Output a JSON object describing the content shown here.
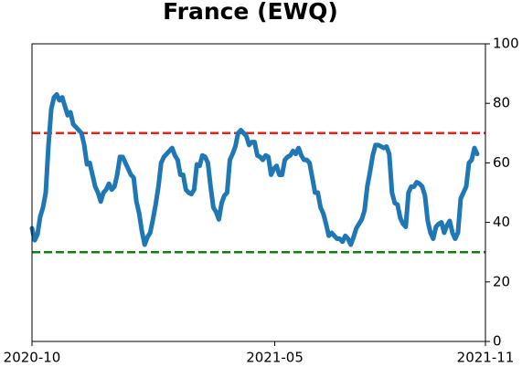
{
  "chart_data": {
    "type": "line",
    "title": "France (EWQ)",
    "x": [
      0,
      2.4,
      4.8,
      7.2,
      9.6,
      12,
      14.4,
      16.8,
      19.2,
      21.6,
      24,
      26.4,
      28.8,
      31.2,
      33.6,
      36,
      38.4,
      40.8,
      43.2,
      45.6,
      48,
      50.4,
      52.8,
      55.2,
      57.6,
      60,
      62.4,
      64.8,
      67.2,
      69.6,
      72,
      74.4,
      76.8,
      79.2,
      81.6,
      84,
      86.4,
      88.8,
      91.2,
      93.6,
      96,
      98.4,
      100.8,
      103.2,
      105.6,
      108,
      110.4,
      112.8,
      115.2,
      117.6,
      120,
      122.4,
      124.8,
      127.2,
      129.6,
      132,
      134.4,
      136.8,
      139.2,
      141.6,
      144,
      146.4,
      148.8,
      151.2,
      153.6,
      156,
      158.4,
      160.8,
      163.2,
      165.6,
      168,
      170.4,
      172.8,
      175.2,
      177.6,
      180,
      182.4,
      184.8,
      187.2,
      189.6,
      192,
      194.4,
      196.8,
      199.2,
      201.6,
      204,
      206.4,
      208.8,
      211.2,
      213.6,
      216,
      218.4,
      220.8,
      223.2,
      225.6,
      228,
      230.4,
      232.8,
      235.2,
      237.6,
      240,
      242.4,
      244.8,
      247.2,
      249.6,
      252,
      254.4,
      256.8,
      259.2,
      261.6,
      264,
      266.4,
      268.8,
      271.2,
      273.6,
      276,
      278.4,
      280.8,
      283.2,
      285.6,
      288,
      290.4,
      292.8,
      295.2,
      297.6,
      300,
      302.4,
      304.8,
      307.2,
      309.6,
      312,
      314.4,
      316.8,
      319.2,
      321.6,
      324,
      326.4,
      328.8,
      331.2,
      333.6,
      336,
      338.4,
      340.8,
      343.2,
      345.6,
      348,
      350.4,
      352.8,
      355.2,
      357.6,
      360,
      362.4,
      364.8,
      367.2,
      369.6,
      372,
      374.4,
      376.8,
      379.2,
      381.6,
      384,
      386.4,
      388.8
    ],
    "values": [
      38,
      34,
      36,
      42,
      45,
      50,
      66,
      78,
      82,
      83,
      81,
      82,
      79,
      76,
      77,
      73,
      72,
      71,
      70,
      66,
      59.5,
      60,
      56,
      52,
      50,
      47,
      50,
      51,
      53,
      51,
      52,
      56,
      62,
      62,
      60,
      58,
      56,
      55,
      47,
      43,
      37,
      32.5,
      35,
      36.5,
      41,
      46,
      52,
      60,
      62,
      63,
      64,
      65,
      62.5,
      61,
      56,
      56,
      51,
      50,
      49.5,
      51,
      59.5,
      59,
      62.5,
      62,
      60,
      52,
      45,
      43.5,
      41,
      46.5,
      49,
      50,
      61,
      63,
      65.5,
      70,
      71,
      70,
      69,
      66,
      67,
      67,
      62.5,
      62,
      61,
      62.5,
      62,
      56,
      58,
      59,
      56,
      56,
      61,
      62,
      62.5,
      64,
      63,
      65,
      62.5,
      61,
      61,
      60,
      55,
      50,
      50,
      45,
      43,
      39.5,
      35.5,
      36.5,
      35.5,
      34.5,
      34.5,
      33.5,
      35.5,
      34.5,
      32.5,
      35,
      38,
      39.5,
      41,
      44,
      52,
      57,
      62.5,
      66,
      66,
      65.5,
      65,
      65.5,
      63,
      50,
      46.5,
      46,
      41.5,
      39.5,
      38.5,
      50,
      52,
      52,
      53.5,
      53,
      52,
      49,
      40.5,
      36.5,
      34.5,
      38.5,
      39.5,
      40,
      36.5,
      39,
      40.5,
      36.5,
      34.5,
      36.5,
      48,
      50,
      52,
      60,
      61,
      65,
      63
    ],
    "color": "#1f77b4",
    "xlim": [
      0,
      396
    ],
    "xticks": [
      {
        "value": 0,
        "label": "2020-10"
      },
      {
        "value": 212,
        "label": "2021-05"
      },
      {
        "value": 396,
        "label": "2021-11"
      }
    ],
    "ylim": [
      0,
      100
    ],
    "yticks": [
      0,
      20,
      40,
      60,
      80,
      100
    ],
    "hlines": [
      {
        "value": 70,
        "color": "#e8201a"
      },
      {
        "value": 30,
        "color": "#108010"
      }
    ]
  }
}
